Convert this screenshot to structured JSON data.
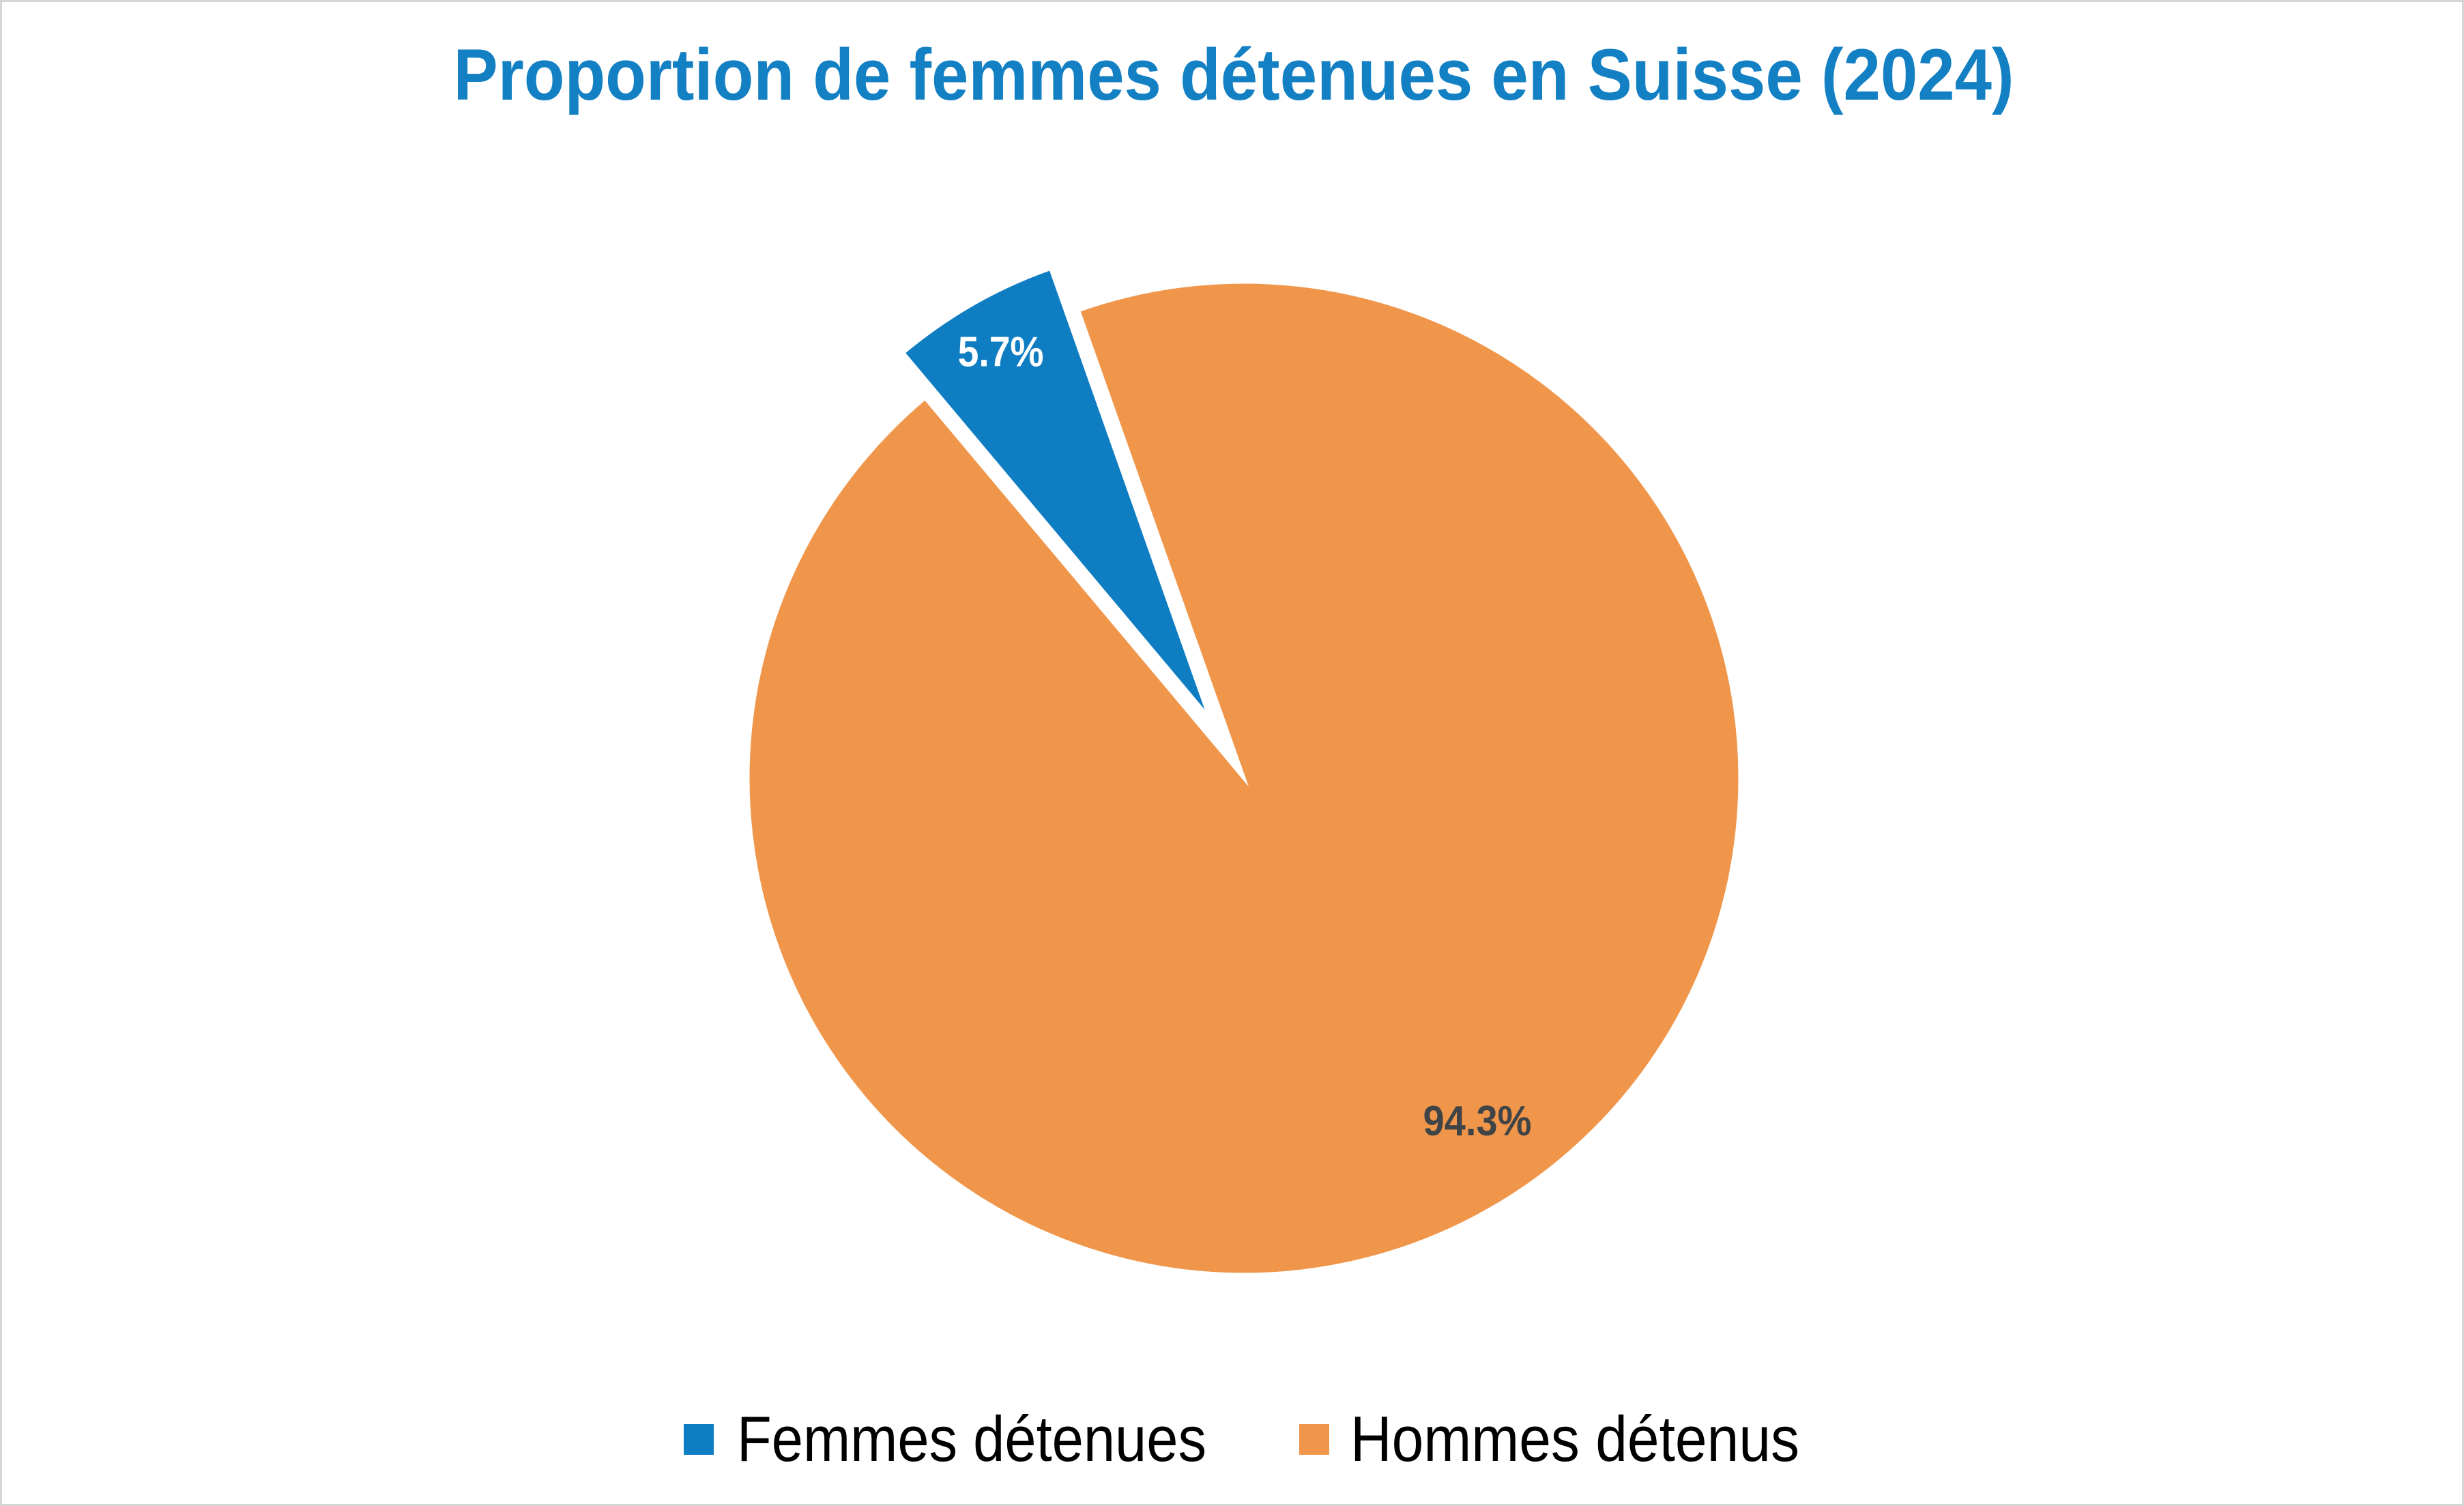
{
  "chart_data": {
    "type": "pie",
    "title": "Proportion de femmes détenues en Suisse (2024)",
    "categories": [
      "Femmes détenues",
      "Hommes détenus"
    ],
    "values": [
      5.7,
      94.3
    ],
    "unit": "%",
    "slices": [
      {
        "label": "Femmes détenues",
        "value": 5.7,
        "display_label": "5.7%",
        "color": "#0F7DC2",
        "label_color": "#FFFFFF",
        "exploded": true
      },
      {
        "label": "Hommes détenus",
        "value": 94.3,
        "display_label": "94.3%",
        "color": "#F0964B",
        "label_color": "#404447",
        "exploded": false
      }
    ],
    "legend_position": "bottom",
    "rotation_deg": -40,
    "direction": "clockwise"
  },
  "title": {
    "text": "Proportion de femmes détenues en Suisse (2024)",
    "color": "#1480C4"
  },
  "legend": {
    "items": [
      {
        "label": "Femmes détenues",
        "color": "#0F7DC2"
      },
      {
        "label": "Hommes détenus",
        "color": "#F0964B"
      }
    ],
    "text_color": "#000000"
  },
  "canvas": {
    "background": "#FFFFFF",
    "border_color": "#D6D6D6"
  }
}
